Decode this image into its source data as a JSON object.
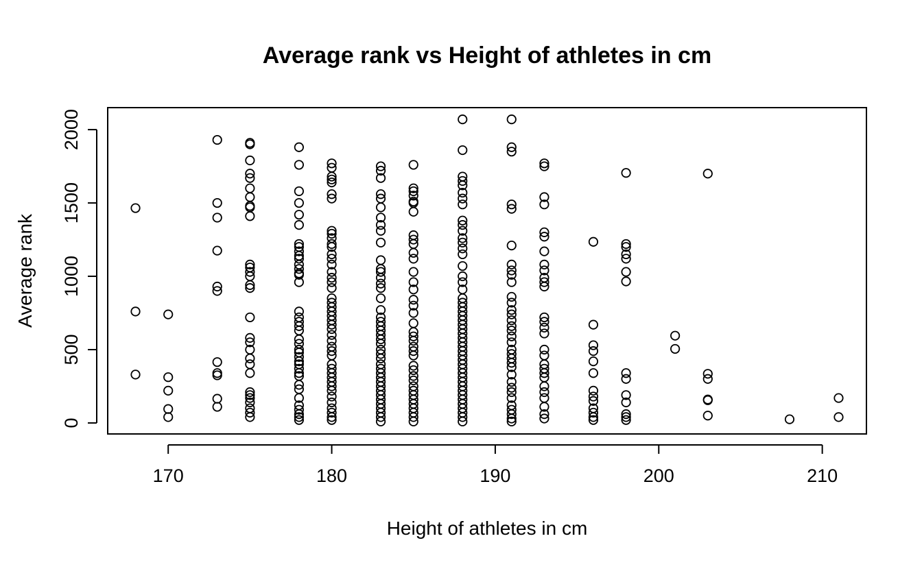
{
  "chart_data": {
    "type": "scatter",
    "title": "Average rank vs Height of athletes in cm",
    "xlabel": "Height of athletes in cm",
    "ylabel": "Average rank",
    "xlim": [
      166.3,
      212.7
    ],
    "ylim": [
      -75,
      2150
    ],
    "xticks": [
      170,
      180,
      190,
      200,
      210
    ],
    "yticks": [
      0,
      500,
      1000,
      1500,
      2000
    ],
    "grid": false,
    "marker": "open-circle",
    "points": [
      [
        168,
        1465
      ],
      [
        168,
        760
      ],
      [
        168,
        330
      ],
      [
        170,
        740
      ],
      [
        170,
        312
      ],
      [
        170,
        220
      ],
      [
        170,
        95
      ],
      [
        170,
        40
      ],
      [
        173,
        1930
      ],
      [
        173,
        1500
      ],
      [
        173,
        1400
      ],
      [
        173,
        1175
      ],
      [
        173,
        930
      ],
      [
        173,
        900
      ],
      [
        173,
        415
      ],
      [
        173,
        340
      ],
      [
        173,
        325
      ],
      [
        173,
        165
      ],
      [
        173,
        110
      ],
      [
        175,
        1910
      ],
      [
        175,
        1900
      ],
      [
        175,
        1790
      ],
      [
        175,
        1700
      ],
      [
        175,
        1670
      ],
      [
        175,
        1600
      ],
      [
        175,
        1540
      ],
      [
        175,
        1480
      ],
      [
        175,
        1470
      ],
      [
        175,
        1410
      ],
      [
        175,
        1080
      ],
      [
        175,
        1060
      ],
      [
        175,
        1030
      ],
      [
        175,
        1000
      ],
      [
        175,
        940
      ],
      [
        175,
        920
      ],
      [
        175,
        720
      ],
      [
        175,
        580
      ],
      [
        175,
        550
      ],
      [
        175,
        500
      ],
      [
        175,
        440
      ],
      [
        175,
        400
      ],
      [
        175,
        340
      ],
      [
        175,
        210
      ],
      [
        175,
        190
      ],
      [
        175,
        170
      ],
      [
        175,
        140
      ],
      [
        175,
        100
      ],
      [
        175,
        70
      ],
      [
        175,
        40
      ],
      [
        178,
        1880
      ],
      [
        178,
        1760
      ],
      [
        178,
        1580
      ],
      [
        178,
        1500
      ],
      [
        178,
        1420
      ],
      [
        178,
        1350
      ],
      [
        178,
        1220
      ],
      [
        178,
        1200
      ],
      [
        178,
        1170
      ],
      [
        178,
        1140
      ],
      [
        178,
        1120
      ],
      [
        178,
        1080
      ],
      [
        178,
        1050
      ],
      [
        178,
        1020
      ],
      [
        178,
        1010
      ],
      [
        178,
        960
      ],
      [
        178,
        760
      ],
      [
        178,
        720
      ],
      [
        178,
        690
      ],
      [
        178,
        660
      ],
      [
        178,
        630
      ],
      [
        178,
        570
      ],
      [
        178,
        540
      ],
      [
        178,
        500
      ],
      [
        178,
        480
      ],
      [
        178,
        450
      ],
      [
        178,
        420
      ],
      [
        178,
        400
      ],
      [
        178,
        370
      ],
      [
        178,
        340
      ],
      [
        178,
        320
      ],
      [
        178,
        260
      ],
      [
        178,
        230
      ],
      [
        178,
        170
      ],
      [
        178,
        120
      ],
      [
        178,
        90
      ],
      [
        178,
        60
      ],
      [
        178,
        40
      ],
      [
        178,
        20
      ],
      [
        180,
        1770
      ],
      [
        180,
        1740
      ],
      [
        180,
        1680
      ],
      [
        180,
        1660
      ],
      [
        180,
        1640
      ],
      [
        180,
        1560
      ],
      [
        180,
        1530
      ],
      [
        180,
        1310
      ],
      [
        180,
        1290
      ],
      [
        180,
        1260
      ],
      [
        180,
        1220
      ],
      [
        180,
        1200
      ],
      [
        180,
        1150
      ],
      [
        180,
        1120
      ],
      [
        180,
        1080
      ],
      [
        180,
        1030
      ],
      [
        180,
        990
      ],
      [
        180,
        960
      ],
      [
        180,
        920
      ],
      [
        180,
        850
      ],
      [
        180,
        820
      ],
      [
        180,
        790
      ],
      [
        180,
        760
      ],
      [
        180,
        730
      ],
      [
        180,
        700
      ],
      [
        180,
        670
      ],
      [
        180,
        640
      ],
      [
        180,
        600
      ],
      [
        180,
        560
      ],
      [
        180,
        520
      ],
      [
        180,
        490
      ],
      [
        180,
        460
      ],
      [
        180,
        400
      ],
      [
        180,
        370
      ],
      [
        180,
        340
      ],
      [
        180,
        310
      ],
      [
        180,
        280
      ],
      [
        180,
        250
      ],
      [
        180,
        220
      ],
      [
        180,
        180
      ],
      [
        180,
        140
      ],
      [
        180,
        100
      ],
      [
        180,
        70
      ],
      [
        180,
        40
      ],
      [
        180,
        20
      ],
      [
        183,
        1750
      ],
      [
        183,
        1720
      ],
      [
        183,
        1670
      ],
      [
        183,
        1560
      ],
      [
        183,
        1530
      ],
      [
        183,
        1470
      ],
      [
        183,
        1400
      ],
      [
        183,
        1350
      ],
      [
        183,
        1310
      ],
      [
        183,
        1230
      ],
      [
        183,
        1110
      ],
      [
        183,
        1050
      ],
      [
        183,
        1030
      ],
      [
        183,
        990
      ],
      [
        183,
        950
      ],
      [
        183,
        920
      ],
      [
        183,
        850
      ],
      [
        183,
        770
      ],
      [
        183,
        720
      ],
      [
        183,
        690
      ],
      [
        183,
        660
      ],
      [
        183,
        630
      ],
      [
        183,
        600
      ],
      [
        183,
        570
      ],
      [
        183,
        540
      ],
      [
        183,
        500
      ],
      [
        183,
        470
      ],
      [
        183,
        440
      ],
      [
        183,
        400
      ],
      [
        183,
        370
      ],
      [
        183,
        340
      ],
      [
        183,
        310
      ],
      [
        183,
        280
      ],
      [
        183,
        250
      ],
      [
        183,
        220
      ],
      [
        183,
        190
      ],
      [
        183,
        160
      ],
      [
        183,
        130
      ],
      [
        183,
        100
      ],
      [
        183,
        70
      ],
      [
        183,
        40
      ],
      [
        183,
        10
      ],
      [
        185,
        1760
      ],
      [
        185,
        1600
      ],
      [
        185,
        1580
      ],
      [
        185,
        1550
      ],
      [
        185,
        1510
      ],
      [
        185,
        1500
      ],
      [
        185,
        1440
      ],
      [
        185,
        1280
      ],
      [
        185,
        1250
      ],
      [
        185,
        1220
      ],
      [
        185,
        1160
      ],
      [
        185,
        1120
      ],
      [
        185,
        1030
      ],
      [
        185,
        960
      ],
      [
        185,
        910
      ],
      [
        185,
        840
      ],
      [
        185,
        800
      ],
      [
        185,
        750
      ],
      [
        185,
        680
      ],
      [
        185,
        620
      ],
      [
        185,
        590
      ],
      [
        185,
        560
      ],
      [
        185,
        520
      ],
      [
        185,
        490
      ],
      [
        185,
        460
      ],
      [
        185,
        390
      ],
      [
        185,
        360
      ],
      [
        185,
        320
      ],
      [
        185,
        290
      ],
      [
        185,
        250
      ],
      [
        185,
        220
      ],
      [
        185,
        190
      ],
      [
        185,
        160
      ],
      [
        185,
        130
      ],
      [
        185,
        100
      ],
      [
        185,
        70
      ],
      [
        185,
        40
      ],
      [
        185,
        10
      ],
      [
        188,
        2070
      ],
      [
        188,
        1860
      ],
      [
        188,
        1680
      ],
      [
        188,
        1650
      ],
      [
        188,
        1620
      ],
      [
        188,
        1570
      ],
      [
        188,
        1530
      ],
      [
        188,
        1490
      ],
      [
        188,
        1380
      ],
      [
        188,
        1350
      ],
      [
        188,
        1310
      ],
      [
        188,
        1260
      ],
      [
        188,
        1230
      ],
      [
        188,
        1190
      ],
      [
        188,
        1150
      ],
      [
        188,
        1070
      ],
      [
        188,
        1000
      ],
      [
        188,
        960
      ],
      [
        188,
        910
      ],
      [
        188,
        850
      ],
      [
        188,
        820
      ],
      [
        188,
        790
      ],
      [
        188,
        760
      ],
      [
        188,
        730
      ],
      [
        188,
        700
      ],
      [
        188,
        670
      ],
      [
        188,
        640
      ],
      [
        188,
        610
      ],
      [
        188,
        580
      ],
      [
        188,
        550
      ],
      [
        188,
        520
      ],
      [
        188,
        490
      ],
      [
        188,
        460
      ],
      [
        188,
        430
      ],
      [
        188,
        400
      ],
      [
        188,
        370
      ],
      [
        188,
        340
      ],
      [
        188,
        310
      ],
      [
        188,
        280
      ],
      [
        188,
        250
      ],
      [
        188,
        220
      ],
      [
        188,
        190
      ],
      [
        188,
        160
      ],
      [
        188,
        130
      ],
      [
        188,
        100
      ],
      [
        188,
        70
      ],
      [
        188,
        40
      ],
      [
        188,
        10
      ],
      [
        191,
        2070
      ],
      [
        191,
        1880
      ],
      [
        191,
        1850
      ],
      [
        191,
        1490
      ],
      [
        191,
        1460
      ],
      [
        191,
        1210
      ],
      [
        191,
        1080
      ],
      [
        191,
        1040
      ],
      [
        191,
        1010
      ],
      [
        191,
        960
      ],
      [
        191,
        860
      ],
      [
        191,
        820
      ],
      [
        191,
        770
      ],
      [
        191,
        740
      ],
      [
        191,
        700
      ],
      [
        191,
        660
      ],
      [
        191,
        630
      ],
      [
        191,
        590
      ],
      [
        191,
        550
      ],
      [
        191,
        500
      ],
      [
        191,
        470
      ],
      [
        191,
        440
      ],
      [
        191,
        410
      ],
      [
        191,
        380
      ],
      [
        191,
        330
      ],
      [
        191,
        280
      ],
      [
        191,
        240
      ],
      [
        191,
        210
      ],
      [
        191,
        170
      ],
      [
        191,
        120
      ],
      [
        191,
        90
      ],
      [
        191,
        60
      ],
      [
        191,
        30
      ],
      [
        191,
        10
      ],
      [
        193,
        1770
      ],
      [
        193,
        1750
      ],
      [
        193,
        1540
      ],
      [
        193,
        1490
      ],
      [
        193,
        1300
      ],
      [
        193,
        1270
      ],
      [
        193,
        1170
      ],
      [
        193,
        1080
      ],
      [
        193,
        1040
      ],
      [
        193,
        990
      ],
      [
        193,
        960
      ],
      [
        193,
        930
      ],
      [
        193,
        720
      ],
      [
        193,
        690
      ],
      [
        193,
        650
      ],
      [
        193,
        610
      ],
      [
        193,
        500
      ],
      [
        193,
        460
      ],
      [
        193,
        400
      ],
      [
        193,
        370
      ],
      [
        193,
        340
      ],
      [
        193,
        310
      ],
      [
        193,
        250
      ],
      [
        193,
        210
      ],
      [
        193,
        170
      ],
      [
        193,
        110
      ],
      [
        193,
        60
      ],
      [
        193,
        30
      ],
      [
        196,
        1235
      ],
      [
        196,
        670
      ],
      [
        196,
        530
      ],
      [
        196,
        490
      ],
      [
        196,
        420
      ],
      [
        196,
        340
      ],
      [
        196,
        220
      ],
      [
        196,
        180
      ],
      [
        196,
        150
      ],
      [
        196,
        100
      ],
      [
        196,
        70
      ],
      [
        196,
        40
      ],
      [
        196,
        20
      ],
      [
        198,
        1705
      ],
      [
        198,
        1220
      ],
      [
        198,
        1200
      ],
      [
        198,
        1150
      ],
      [
        198,
        1120
      ],
      [
        198,
        1030
      ],
      [
        198,
        965
      ],
      [
        198,
        340
      ],
      [
        198,
        300
      ],
      [
        198,
        190
      ],
      [
        198,
        140
      ],
      [
        198,
        60
      ],
      [
        198,
        40
      ],
      [
        198,
        20
      ],
      [
        201,
        595
      ],
      [
        201,
        505
      ],
      [
        203,
        1700
      ],
      [
        203,
        335
      ],
      [
        203,
        300
      ],
      [
        203,
        160
      ],
      [
        203,
        155
      ],
      [
        203,
        50
      ],
      [
        208,
        25
      ],
      [
        211,
        170
      ],
      [
        211,
        40
      ]
    ]
  }
}
